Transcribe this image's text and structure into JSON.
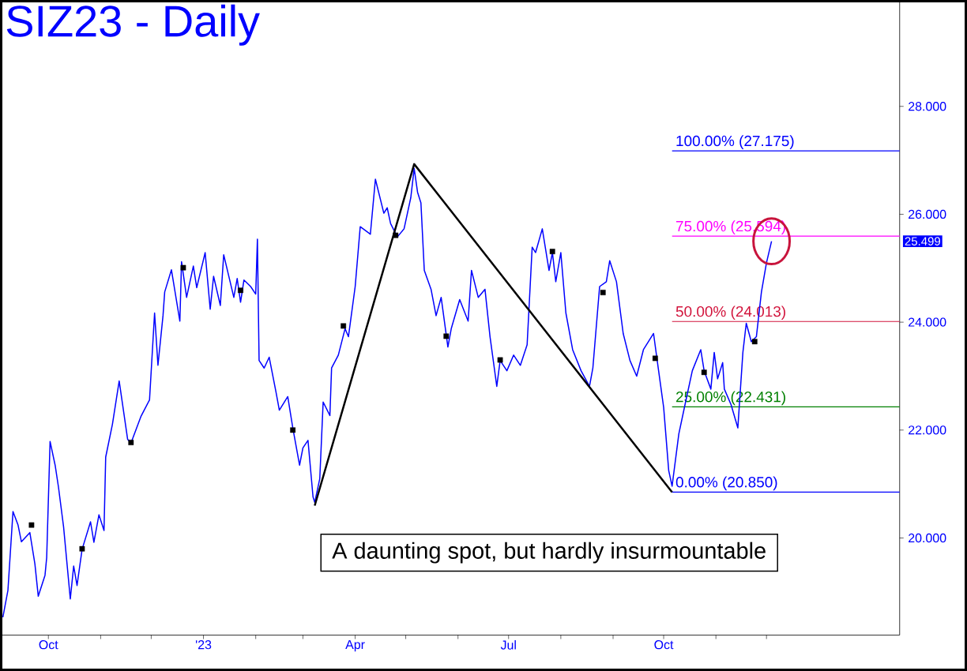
{
  "chart_data": {
    "type": "line",
    "title": "SIZ23 - Daily",
    "xlim": [
      "2022-09-03",
      "2024-02-18"
    ],
    "ylim": [
      18.2,
      29.95
    ],
    "xticks": [
      {
        "value": "2022-10-01",
        "label": "Oct"
      },
      {
        "value": "2022-11-01",
        "label": null
      },
      {
        "value": "2022-12-01",
        "label": null
      },
      {
        "value": "2023-01-01",
        "label": "'23"
      },
      {
        "value": "2023-02-01",
        "label": null
      },
      {
        "value": "2023-03-01",
        "label": null
      },
      {
        "value": "2023-04-01",
        "label": "Apr"
      },
      {
        "value": "2023-05-01",
        "label": null
      },
      {
        "value": "2023-06-01",
        "label": null
      },
      {
        "value": "2023-07-01",
        "label": "Jul"
      },
      {
        "value": "2023-08-01",
        "label": null
      },
      {
        "value": "2023-09-01",
        "label": null
      },
      {
        "value": "2023-10-01",
        "label": "Oct"
      },
      {
        "value": "2023-11-01",
        "label": null
      },
      {
        "value": "2023-12-01",
        "label": null
      }
    ],
    "yticks": [
      {
        "value": 20,
        "label": "20.000"
      },
      {
        "value": 22,
        "label": "22.000"
      },
      {
        "value": 24,
        "label": "24.000"
      },
      {
        "value": 26,
        "label": "26.000"
      },
      {
        "value": 28,
        "label": "28.000"
      }
    ],
    "series": [
      {
        "color": "#0000ff",
        "x": [
          "2022-09-04",
          "2022-09-07",
          "2022-09-10",
          "2022-09-13",
          "2022-09-15",
          "2022-09-20",
          "2022-09-23",
          "2022-09-25",
          "2022-09-29",
          "2022-09-30",
          "2022-10-02",
          "2022-10-05",
          "2022-10-07",
          "2022-10-10",
          "2022-10-14",
          "2022-10-16",
          "2022-10-18",
          "2022-10-21",
          "2022-10-26",
          "2022-10-28",
          "2022-10-31",
          "2022-11-03",
          "2022-11-04",
          "2022-11-08",
          "2022-11-12",
          "2022-11-17",
          "2022-11-19",
          "2022-11-25",
          "2022-11-30",
          "2022-12-03",
          "2022-12-05",
          "2022-12-08",
          "2022-12-09",
          "2022-12-13",
          "2022-12-18",
          "2022-12-19",
          "2022-12-22",
          "2022-12-26",
          "2022-12-28",
          "2023-01-02",
          "2023-01-05",
          "2023-01-07",
          "2023-01-11",
          "2023-01-13",
          "2023-01-19",
          "2023-01-21",
          "2023-01-23",
          "2023-01-25",
          "2023-01-29",
          "2023-02-01",
          "2023-02-02",
          "2023-02-03",
          "2023-02-06",
          "2023-02-09",
          "2023-02-13",
          "2023-02-15",
          "2023-02-20",
          "2023-02-23",
          "2023-02-27",
          "2023-03-01",
          "2023-03-04",
          "2023-03-07",
          "2023-03-08",
          "2023-03-11",
          "2023-03-13",
          "2023-03-17",
          "2023-03-18",
          "2023-03-22",
          "2023-03-26",
          "2023-03-28",
          "2023-04-01",
          "2023-04-04",
          "2023-04-10",
          "2023-04-13",
          "2023-04-18",
          "2023-04-20",
          "2023-04-22",
          "2023-04-26",
          "2023-04-30",
          "2023-05-04",
          "2023-05-06",
          "2023-05-08",
          "2023-05-10",
          "2023-05-12",
          "2023-05-16",
          "2023-05-19",
          "2023-05-22",
          "2023-05-26",
          "2023-05-28",
          "2023-06-02",
          "2023-06-07",
          "2023-06-09",
          "2023-06-13",
          "2023-06-17",
          "2023-06-20",
          "2023-06-24",
          "2023-06-26",
          "2023-06-30",
          "2023-07-04",
          "2023-07-08",
          "2023-07-12",
          "2023-07-15",
          "2023-07-17",
          "2023-07-21",
          "2023-07-25",
          "2023-07-27",
          "2023-07-29",
          "2023-08-01",
          "2023-08-04",
          "2023-08-08",
          "2023-08-13",
          "2023-08-18",
          "2023-08-20",
          "2023-08-24",
          "2023-08-28",
          "2023-08-30",
          "2023-09-03",
          "2023-09-07",
          "2023-09-11",
          "2023-09-15",
          "2023-09-19",
          "2023-09-25",
          "2023-09-28",
          "2023-10-01",
          "2023-10-04",
          "2023-10-06",
          "2023-10-10",
          "2023-10-14",
          "2023-10-18",
          "2023-10-23",
          "2023-10-25",
          "2023-10-29",
          "2023-10-31",
          "2023-11-02",
          "2023-11-05",
          "2023-11-06",
          "2023-11-10",
          "2023-11-14",
          "2023-11-17",
          "2023-11-19",
          "2023-11-22",
          "2023-11-25",
          "2023-11-28",
          "2023-12-01",
          "2023-12-04"
        ],
        "values": [
          18.53,
          19.03,
          20.49,
          20.24,
          19.93,
          20.1,
          19.52,
          18.92,
          19.31,
          19.64,
          21.79,
          21.35,
          20.94,
          20.21,
          18.87,
          19.48,
          19.12,
          19.79,
          20.3,
          19.92,
          20.43,
          20.14,
          21.5,
          22.11,
          22.91,
          21.83,
          21.76,
          22.26,
          22.56,
          24.17,
          23.2,
          24.12,
          24.56,
          24.97,
          24.02,
          25.12,
          24.46,
          25.04,
          24.64,
          25.29,
          24.24,
          24.85,
          24.31,
          25.25,
          24.46,
          24.81,
          24.37,
          24.78,
          24.66,
          24.52,
          25.54,
          23.29,
          23.15,
          23.35,
          22.71,
          22.37,
          22.62,
          22.04,
          21.35,
          21.67,
          21.81,
          20.76,
          20.66,
          21.1,
          22.52,
          22.27,
          23.15,
          23.39,
          23.88,
          23.73,
          24.66,
          25.77,
          25.63,
          26.65,
          26.02,
          26.12,
          25.83,
          25.58,
          25.73,
          26.31,
          26.85,
          26.41,
          26.21,
          24.96,
          24.61,
          24.12,
          24.46,
          23.54,
          23.88,
          24.42,
          24.02,
          24.96,
          24.46,
          24.61,
          23.73,
          22.81,
          23.29,
          23.1,
          23.39,
          23.2,
          23.58,
          25.39,
          25.29,
          25.73,
          24.96,
          25.29,
          24.75,
          25.29,
          24.17,
          23.49,
          23.1,
          22.81,
          23.15,
          24.66,
          24.75,
          25.14,
          24.75,
          23.79,
          23.29,
          23.0,
          23.49,
          23.79,
          23.1,
          22.42,
          21.25,
          20.96,
          21.93,
          22.52,
          23.1,
          23.49,
          23.1,
          22.76,
          23.44,
          22.95,
          23.25,
          22.76,
          22.47,
          22.04,
          23.44,
          23.98,
          23.64,
          23.73,
          24.56,
          25.1,
          25.5
        ]
      },
      {
        "type": "scatter",
        "color": "#000000",
        "marker": "square",
        "x": [
          "2022-09-21",
          "2022-10-21",
          "2022-11-19",
          "2022-12-20",
          "2023-01-23",
          "2023-02-23",
          "2023-03-25",
          "2023-04-25",
          "2023-05-25",
          "2023-06-26",
          "2023-07-27",
          "2023-08-26",
          "2023-09-26",
          "2023-10-25",
          "2023-11-24"
        ],
        "values": [
          20.24,
          19.8,
          21.77,
          25.01,
          24.59,
          22.0,
          23.93,
          25.61,
          23.74,
          23.3,
          25.31,
          24.55,
          23.33,
          23.07,
          23.64
        ]
      },
      {
        "type": "line",
        "color": "#000000",
        "x": [
          "2023-03-08",
          "2023-05-06",
          "2023-10-06"
        ],
        "values": [
          20.6,
          26.93,
          20.85
        ]
      }
    ],
    "ref_lines": [
      {
        "axis": "y",
        "value": 27.175,
        "label": "100.00% (27.175)",
        "color": "#0000ff"
      },
      {
        "axis": "y",
        "value": 25.594,
        "label": "75.00% (25.594)",
        "color": "#ff00ff"
      },
      {
        "axis": "y",
        "value": 24.013,
        "label": "50.00% (24.013)",
        "color": "#d2143c"
      },
      {
        "axis": "y",
        "value": 22.431,
        "label": "25.00% (22.431)",
        "color": "#008000"
      },
      {
        "axis": "y",
        "value": 20.85,
        "label": "0.00% (20.850)",
        "color": "#0000ff"
      }
    ],
    "annotations": [
      "25.499",
      "A daunting spot, but hardly insurmountable"
    ]
  }
}
